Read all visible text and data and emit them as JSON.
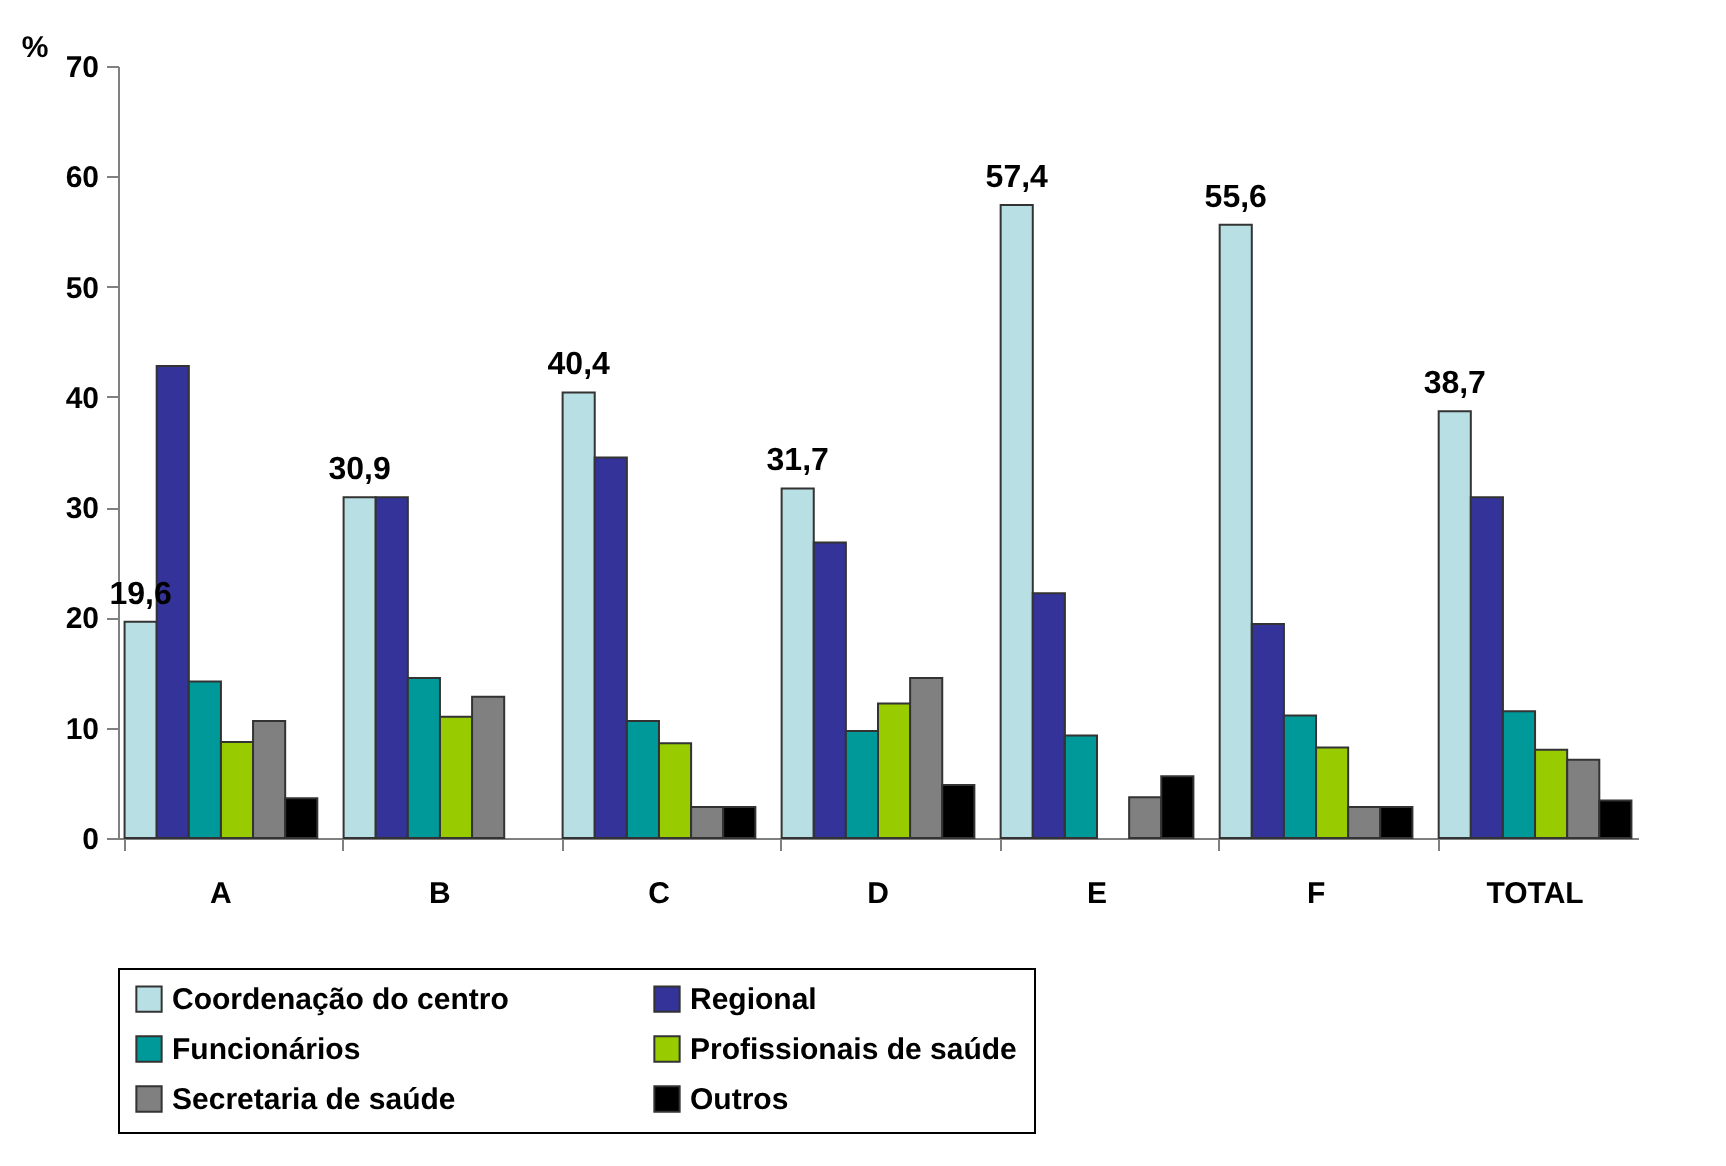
{
  "chart_data": {
    "type": "bar",
    "ylabel": "%",
    "categories": [
      "A",
      "B",
      "C",
      "D",
      "E",
      "F",
      "TOTAL"
    ],
    "ylim": [
      0,
      70
    ],
    "yticks": [
      0,
      10,
      20,
      30,
      40,
      50,
      60,
      70
    ],
    "grid": false,
    "legend": "bottom",
    "series": [
      {
        "name": "Coordenação do centro",
        "color": "#b8e0e4",
        "values": [
          19.6,
          30.9,
          40.4,
          31.7,
          57.4,
          55.6,
          38.7
        ],
        "value_labels": [
          "19,6",
          "30,9",
          "40,4",
          "31,7",
          "57,4",
          "55,6",
          "38,7"
        ]
      },
      {
        "name": "Regional",
        "color": "#333399",
        "values": [
          42.8,
          30.9,
          34.5,
          26.8,
          22.2,
          19.4,
          30.9
        ]
      },
      {
        "name": "Funcionários",
        "color": "#009999",
        "values": [
          14.2,
          14.5,
          10.6,
          9.7,
          9.3,
          11.1,
          11.5
        ]
      },
      {
        "name": "Profissionais de saúde",
        "color": "#99cc00",
        "values": [
          8.7,
          11.0,
          8.6,
          12.2,
          null,
          8.2,
          8.0
        ]
      },
      {
        "name": "Secretaria de saúde",
        "color": "#808080",
        "values": [
          10.6,
          12.8,
          2.8,
          14.5,
          3.7,
          2.8,
          7.1
        ]
      },
      {
        "name": "Outros",
        "color": "#000000",
        "values": [
          3.6,
          null,
          2.8,
          4.8,
          5.6,
          2.8,
          3.4
        ]
      }
    ]
  }
}
